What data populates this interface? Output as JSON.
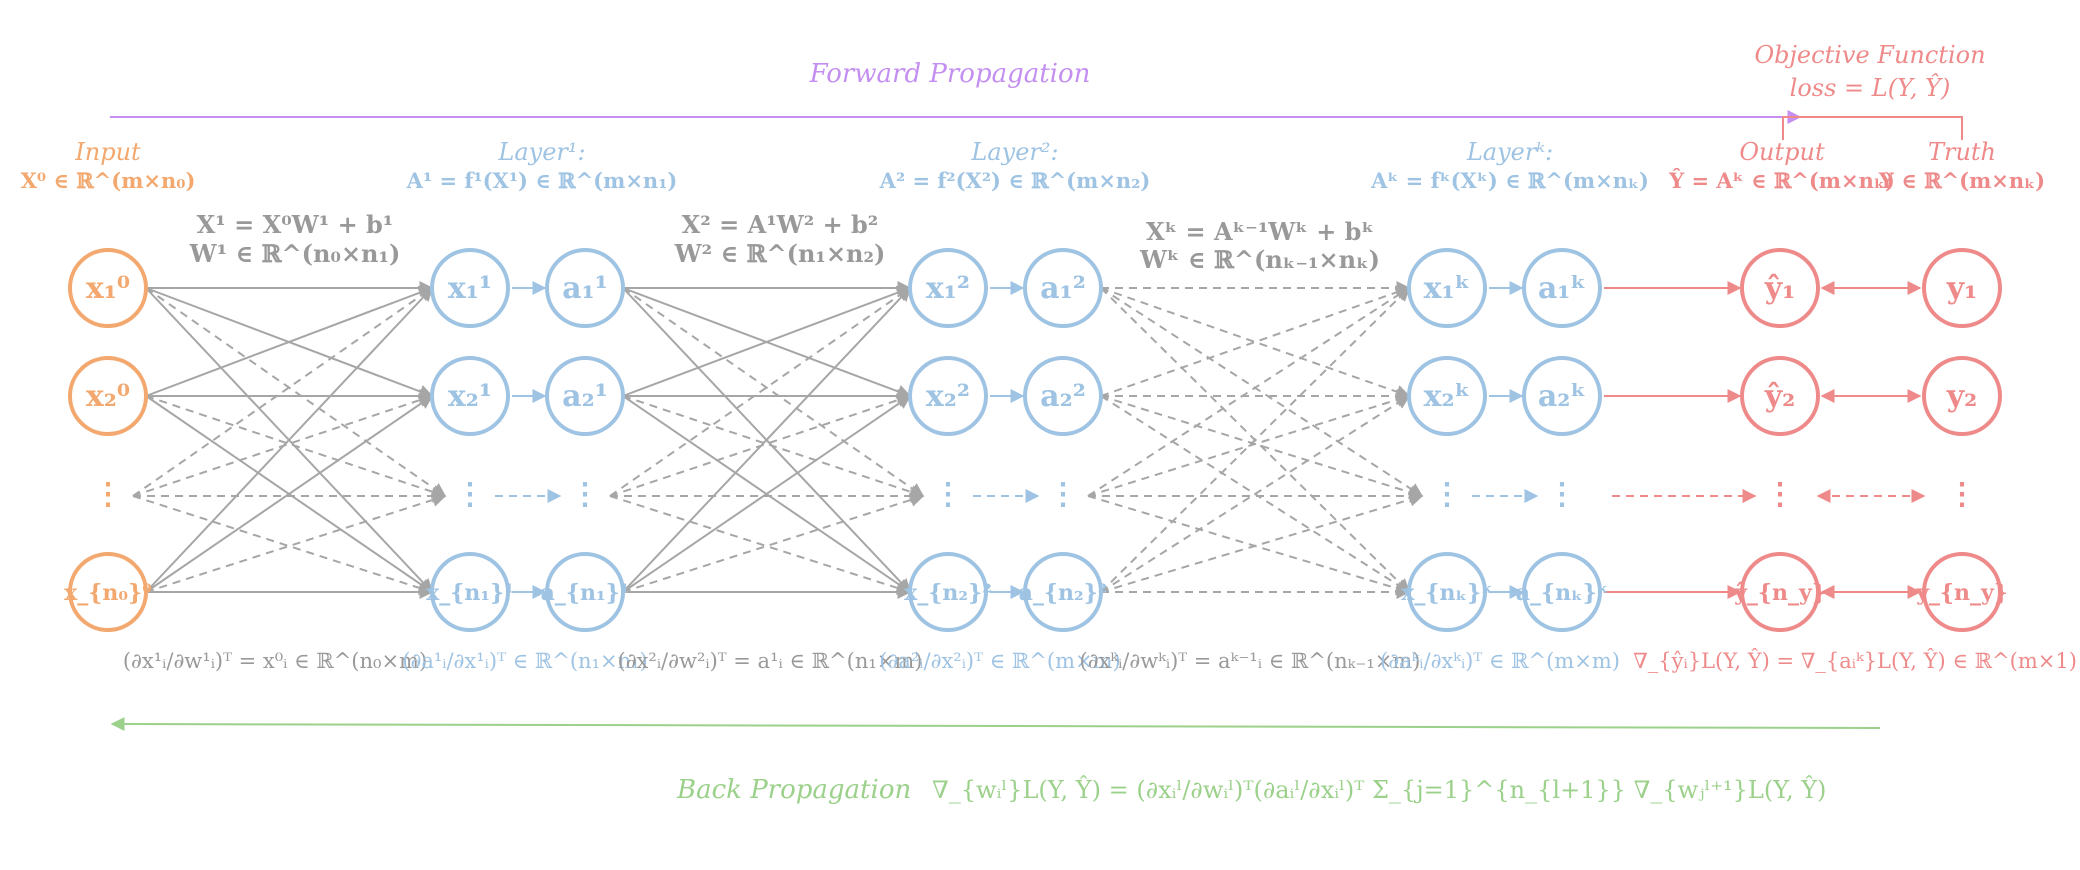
{
  "colors": {
    "orange": "#f2a86e",
    "blue": "#9ec3e3",
    "red": "#ef8a8a",
    "gray": "#a6a6a6",
    "purple": "#c48ff0",
    "green": "#9bd18a"
  },
  "titles": {
    "forward": "Forward Propagation",
    "objective": "Objective Function",
    "loss": "loss = L(Y, Ŷ)",
    "back": "Back Propagation"
  },
  "layer_headers": {
    "input_title": "Input",
    "input_eq": "X⁰ ∈ ℝ^(m×n₀)",
    "layer1_title": "Layer¹:",
    "layer1_eq": "A¹ = f¹(X¹) ∈ ℝ^(m×n₁)",
    "layer2_title": "Layer²:",
    "layer2_eq": "A² = f²(X²)  ∈ ℝ^(m×n₂)",
    "layerk_title": "Layerᵏ:",
    "layerk_eq": "Aᵏ = fᵏ(Xᵏ) ∈ ℝ^(m×nₖ)",
    "output_title": "Output",
    "output_eq": "Ŷ = Aᵏ ∈ ℝ^(m×nₖ)",
    "truth_title": "Truth",
    "truth_eq": "Y ∈ ℝ^(m×nₖ)"
  },
  "weight_labels": {
    "w1_line1": "X¹ = X⁰W¹ + b¹",
    "w1_line2": "W¹ ∈ ℝ^(n₀×n₁)",
    "w2_line1": "X² = A¹W² + b²",
    "w2_line2": "W² ∈ ℝ^(n₁×n₂)",
    "wk_line1": "Xᵏ = Aᵏ⁻¹Wᵏ + bᵏ",
    "wk_line2": "Wᵏ ∈ ℝ^(nₖ₋₁×nₖ)"
  },
  "node_labels": {
    "x0": [
      "x₁⁰",
      "x₂⁰",
      "⋮",
      "x_{n₀}⁰"
    ],
    "x1": [
      "x₁¹",
      "x₂¹",
      "⋮",
      "x_{n₁}¹"
    ],
    "a1": [
      "a₁¹",
      "a₂¹",
      "⋮",
      "a_{n₁}¹"
    ],
    "x2": [
      "x₁²",
      "x₂²",
      "⋮",
      "x_{n₂}²"
    ],
    "a2": [
      "a₁²",
      "a₂²",
      "⋮",
      "a_{n₂}²"
    ],
    "xk": [
      "x₁ᵏ",
      "x₂ᵏ",
      "⋮",
      "x_{nₖ}ᵏ"
    ],
    "ak": [
      "a₁ᵏ",
      "a₂ᵏ",
      "⋮",
      "a_{nₖ}ᵏ"
    ],
    "yhat": [
      "ŷ₁",
      "ŷ₂",
      "⋮",
      "ŷ_{n_y}"
    ],
    "y": [
      "y₁",
      "y₂",
      "⋮",
      "y_{n_y}"
    ]
  },
  "gradient_labels": {
    "g1": "(∂x¹ᵢ/∂w¹ᵢ)ᵀ = x⁰ᵢ ∈ ℝ^(n₀×m)",
    "g2": "(∂a¹ᵢ/∂x¹ᵢ)ᵀ ∈ ℝ^(n₁×n₁)",
    "g3": "(∂x²ᵢ/∂w²ᵢ)ᵀ = a¹ᵢ ∈ ℝ^(n₁×m)",
    "g4": "(∂a²ᵢ/∂x²ᵢ)ᵀ ∈ ℝ^(m×m)",
    "g5": "(∂xᵏᵢ/∂wᵏᵢ)ᵀ = aᵏ⁻¹ᵢ ∈ ℝ^(nₖ₋₁×m)",
    "g6": "(∂aᵏᵢ/∂xᵏᵢ)ᵀ ∈ ℝ^(m×m)",
    "g7": "∇_{ŷᵢ}L(Y, Ŷ) = ∇_{aᵢᵏ}L(Y, Ŷ) ∈ ℝ^(m×1)"
  },
  "back_formula": "∇_{wᵢˡ}L(Y, Ŷ) = (∂xᵢˡ/∂wᵢˡ)ᵀ(∂aᵢˡ/∂xᵢˡ)ᵀ Σ_{j=1}^{n_{l+1}} ∇_{wⱼˡ⁺¹}L(Y, Ŷ)"
}
